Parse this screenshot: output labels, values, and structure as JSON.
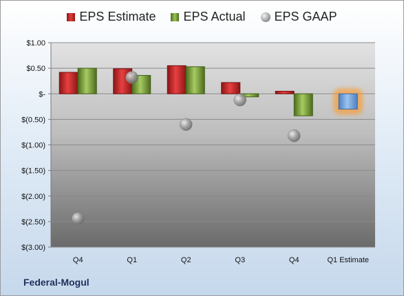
{
  "company": "Federal-Mogul",
  "legend": {
    "estimate": "EPS Estimate",
    "actual": "EPS Actual",
    "gaap": "EPS GAAP"
  },
  "colors": {
    "estimate": "#d42a2a",
    "actual": "#7fa53c",
    "gaap": "#9a9a9a",
    "forecast": "#6f9fd8",
    "forecast_glow": "#f5a040"
  },
  "chart_data": {
    "type": "bar",
    "categories": [
      "Q4",
      "Q1",
      "Q2",
      "Q3",
      "Q4",
      "Q1 Estimate"
    ],
    "series": [
      {
        "name": "EPS Estimate",
        "values": [
          0.42,
          0.49,
          0.55,
          0.22,
          0.05,
          -0.3
        ]
      },
      {
        "name": "EPS Actual",
        "values": [
          0.5,
          0.36,
          0.53,
          -0.06,
          -0.43,
          null
        ]
      },
      {
        "name": "EPS GAAP",
        "values": [
          -2.44,
          0.32,
          -0.6,
          -0.12,
          -0.82,
          null
        ]
      }
    ],
    "ylim": [
      -3.0,
      1.0
    ],
    "yticks": [
      1.0,
      0.5,
      0,
      -0.5,
      -1.0,
      -1.5,
      -2.0,
      -2.5,
      -3.0
    ],
    "ytick_labels": [
      "$1.00",
      "$0.50",
      "$-",
      "$(0.50)",
      "$(1.00)",
      "$(1.50)",
      "$(2.00)",
      "$(2.50)",
      "$(3.00)"
    ],
    "grid": true,
    "legend_position": "top"
  }
}
